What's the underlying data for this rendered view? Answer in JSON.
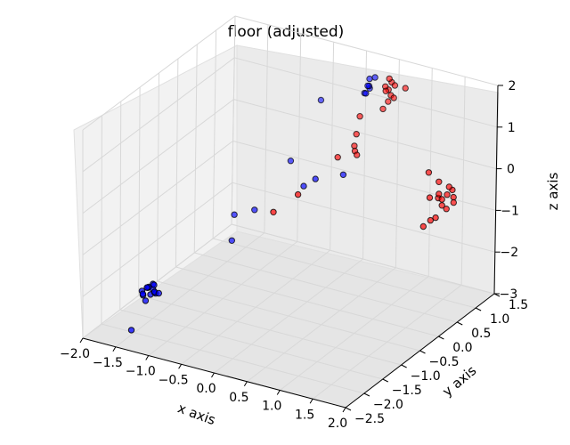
{
  "chart_data": {
    "type": "scatter",
    "title": "floor (adjusted)",
    "xlabel": "x axis",
    "ylabel": "y axis",
    "zlabel": "z axis",
    "xlim": [
      -2.0,
      2.0
    ],
    "ylim": [
      -2.5,
      1.5
    ],
    "zlim": [
      -3,
      2
    ],
    "xticks": [
      "−2.0",
      "−1.5",
      "−1.0",
      "−0.5",
      "0.0",
      "0.5",
      "1.0",
      "1.5",
      "2.0"
    ],
    "yticks": [
      "−2.5",
      "−2.0",
      "−1.5",
      "−1.0",
      "−0.5",
      "0.0",
      "0.5",
      "1.0",
      "1.5"
    ],
    "zticks": [
      "−3",
      "−2",
      "−1",
      "0",
      "1",
      "2"
    ],
    "grid": true,
    "series": [
      {
        "color": "#0000ff",
        "points": [
          [
            -1.55,
            -1.55,
            -2.25
          ],
          [
            -1.5,
            -1.5,
            -2.3
          ],
          [
            -1.52,
            -1.58,
            -2.2
          ],
          [
            -1.48,
            -1.6,
            -2.35
          ],
          [
            -1.58,
            -1.52,
            -2.28
          ],
          [
            -1.45,
            -1.55,
            -2.32
          ],
          [
            -1.53,
            -1.45,
            -2.22
          ],
          [
            -1.6,
            -1.62,
            -2.3
          ],
          [
            -1.47,
            -1.48,
            -2.4
          ],
          [
            -1.56,
            -1.66,
            -2.36
          ],
          [
            -1.42,
            -1.6,
            -2.26
          ],
          [
            -1.5,
            -1.7,
            -2.44
          ],
          [
            -1.4,
            -1.52,
            -2.34
          ],
          [
            -1.62,
            -1.56,
            -2.42
          ],
          [
            -1.54,
            -1.4,
            -2.28
          ],
          [
            -1.6,
            -1.9,
            -3.05
          ],
          [
            -0.95,
            -0.3,
            -1.1
          ],
          [
            -0.9,
            -0.45,
            -1.6
          ],
          [
            -0.7,
            -0.2,
            -0.95
          ],
          [
            -0.5,
            0.4,
            -0.1
          ],
          [
            -0.45,
            1.1,
            0.9
          ],
          [
            -0.1,
            0.05,
            -0.3
          ],
          [
            0.05,
            0.1,
            -0.1
          ],
          [
            0.3,
            0.4,
            -0.1
          ],
          [
            0.15,
            1.2,
            1.25
          ],
          [
            0.2,
            1.25,
            1.35
          ],
          [
            0.22,
            1.2,
            1.45
          ],
          [
            0.18,
            1.28,
            1.55
          ],
          [
            0.25,
            1.3,
            1.6
          ],
          [
            0.2,
            1.15,
            1.3
          ],
          [
            0.17,
            1.25,
            1.4
          ]
        ]
      },
      {
        "color": "#ff0000",
        "points": [
          [
            0.4,
            1.4,
            1.3
          ],
          [
            0.42,
            1.45,
            1.45
          ],
          [
            0.45,
            1.38,
            1.2
          ],
          [
            0.38,
            1.35,
            1.4
          ],
          [
            0.44,
            1.5,
            1.35
          ],
          [
            0.4,
            1.42,
            1.55
          ],
          [
            0.36,
            1.4,
            1.25
          ],
          [
            0.46,
            1.44,
            1.1
          ],
          [
            0.42,
            1.36,
            1.05
          ],
          [
            0.6,
            1.5,
            1.35
          ],
          [
            0.35,
            1.35,
            0.85
          ],
          [
            0.2,
            1.0,
            0.85
          ],
          [
            0.18,
            0.95,
            0.45
          ],
          [
            0.18,
            0.9,
            0.2
          ],
          [
            0.2,
            0.88,
            0.1
          ],
          [
            0.22,
            0.9,
            0.0
          ],
          [
            0.1,
            0.6,
            0.1
          ],
          [
            -0.1,
            -0.1,
            -0.4
          ],
          [
            -0.3,
            -0.4,
            -0.7
          ],
          [
            1.3,
            1.2,
            -0.4
          ],
          [
            1.35,
            1.1,
            -0.7
          ],
          [
            1.35,
            1.2,
            -0.8
          ],
          [
            1.4,
            1.25,
            -0.7
          ],
          [
            1.45,
            1.3,
            -0.6
          ],
          [
            1.38,
            1.15,
            -0.9
          ],
          [
            1.42,
            1.2,
            -1.0
          ],
          [
            1.48,
            1.28,
            -0.75
          ],
          [
            1.4,
            1.3,
            -0.55
          ],
          [
            1.5,
            1.25,
            -0.85
          ],
          [
            1.36,
            1.1,
            -0.6
          ],
          [
            1.2,
            1.1,
            -0.15
          ],
          [
            1.25,
            1.05,
            -0.7
          ],
          [
            1.35,
            0.9,
            -1.1
          ],
          [
            1.4,
            0.95,
            -1.05
          ],
          [
            1.3,
            0.8,
            -1.2
          ]
        ]
      }
    ]
  }
}
